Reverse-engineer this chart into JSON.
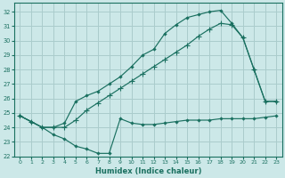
{
  "xlabel": "Humidex (Indice chaleur)",
  "bg_color": "#cce8e8",
  "grid_color": "#aacccc",
  "line_color": "#1a7060",
  "xlim": [
    -0.5,
    23.5
  ],
  "ylim": [
    22,
    32.6
  ],
  "yticks": [
    22,
    23,
    24,
    25,
    26,
    27,
    28,
    29,
    30,
    31,
    32
  ],
  "xticks": [
    0,
    1,
    2,
    3,
    4,
    5,
    6,
    7,
    8,
    9,
    10,
    11,
    12,
    13,
    14,
    15,
    16,
    17,
    18,
    19,
    20,
    21,
    22,
    23
  ],
  "line_upper_x": [
    0,
    1,
    2,
    3,
    4,
    5,
    6,
    7,
    8,
    9,
    10,
    11,
    12,
    13,
    14,
    15,
    16,
    17,
    18,
    19,
    20,
    21,
    22,
    23
  ],
  "line_upper_y": [
    24.8,
    24.4,
    24.0,
    24.0,
    24.3,
    25.8,
    26.2,
    26.5,
    27.0,
    27.5,
    28.2,
    29.0,
    29.4,
    30.5,
    31.1,
    31.6,
    31.8,
    32.0,
    32.1,
    31.2,
    30.2,
    28.0,
    25.8,
    25.8
  ],
  "line_mid_x": [
    0,
    1,
    2,
    3,
    4,
    5,
    6,
    7,
    8,
    9,
    10,
    11,
    12,
    13,
    14,
    15,
    16,
    17,
    18,
    19,
    20,
    21,
    22,
    23
  ],
  "line_mid_y": [
    24.8,
    24.4,
    24.0,
    24.0,
    24.0,
    24.5,
    25.2,
    25.7,
    26.2,
    26.7,
    27.2,
    27.7,
    28.2,
    28.7,
    29.2,
    29.7,
    30.3,
    30.8,
    31.2,
    31.1,
    30.2,
    28.0,
    25.8,
    25.8
  ],
  "line_low_x": [
    0,
    1,
    2,
    3,
    4,
    5,
    6,
    7,
    8,
    9,
    10,
    11,
    12,
    13,
    14,
    15,
    16,
    17,
    18,
    19,
    20,
    21,
    22,
    23
  ],
  "line_low_y": [
    24.8,
    24.4,
    24.0,
    23.5,
    23.2,
    22.7,
    22.5,
    22.2,
    22.2,
    24.6,
    24.3,
    24.2,
    24.2,
    24.3,
    24.4,
    24.5,
    24.5,
    24.5,
    24.6,
    24.6,
    24.6,
    24.6,
    24.7,
    24.8
  ]
}
